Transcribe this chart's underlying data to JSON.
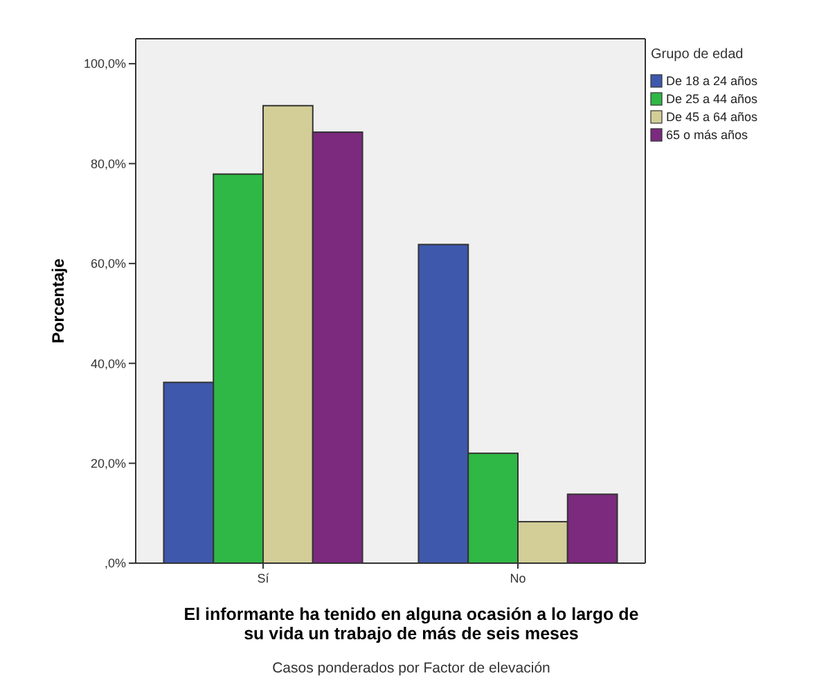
{
  "chart_data": {
    "type": "bar",
    "xlabel": "El informante ha tenido en alguna ocasión a lo largo de su vida un trabajo de más de seis meses",
    "ylabel": "Porcentaje",
    "legend_title": "Grupo de edad",
    "categories": [
      "Sí",
      "No"
    ],
    "series": [
      {
        "name": "De 18 a 24 años",
        "color": "#3e58ac",
        "values": [
          36.2,
          63.8
        ]
      },
      {
        "name": "De 25 a 44 años",
        "color": "#2fb845",
        "values": [
          77.9,
          22.0
        ]
      },
      {
        "name": "De 45 a 64 años",
        "color": "#d3ce97",
        "values": [
          91.6,
          8.3
        ]
      },
      {
        "name": "65  o más años",
        "color": "#7b2a7e",
        "values": [
          86.3,
          13.8
        ]
      }
    ],
    "ylim": [
      0,
      105
    ],
    "yticks": [
      {
        "value": 0,
        "label": ",0%"
      },
      {
        "value": 20,
        "label": "20,0%"
      },
      {
        "value": 40,
        "label": "40,0%"
      },
      {
        "value": 60,
        "label": "60,0%"
      },
      {
        "value": 80,
        "label": "80,0%"
      },
      {
        "value": 100,
        "label": "100,0%"
      }
    ],
    "grid": false,
    "legend": "right",
    "annotations": [
      "Casos ponderados por Factor de elevación"
    ]
  }
}
